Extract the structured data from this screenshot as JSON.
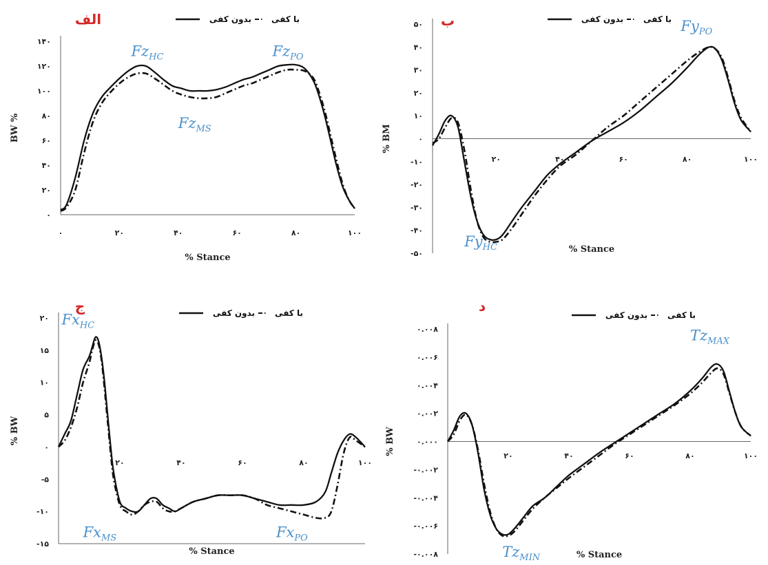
{
  "chart_data": [
    {
      "id": "fz",
      "type": "line",
      "panel_label": "الف",
      "xlabel": "% Stance",
      "ylabel": "BW %",
      "xlim": [
        0,
        100
      ],
      "ylim": [
        0,
        140
      ],
      "xticks": [
        0,
        20,
        40,
        60,
        80,
        100
      ],
      "xtick_labels": [
        "۰",
        "۲۰",
        "۴۰",
        "۶۰",
        "۸۰",
        "۱۰۰"
      ],
      "yticks": [
        0,
        20,
        40,
        60,
        80,
        100,
        120,
        140
      ],
      "ytick_labels": [
        "۰",
        "۲۰",
        "۴۰",
        "۶۰",
        "۸۰",
        "۱۰۰",
        "۱۲۰",
        "۱۴۰"
      ],
      "zero_line": false,
      "legend": "top",
      "series": [
        {
          "name": "با کفی",
          "style": "solid",
          "x": [
            0,
            2,
            5,
            8,
            11,
            14,
            17,
            20,
            23,
            26,
            29,
            32,
            35,
            38,
            41,
            44,
            47,
            50,
            53,
            56,
            59,
            62,
            65,
            68,
            71,
            74,
            77,
            80,
            83,
            86,
            88,
            90,
            92,
            94,
            96,
            98,
            100
          ],
          "y": [
            4,
            8,
            30,
            60,
            82,
            95,
            103,
            110,
            116,
            120,
            120,
            115,
            109,
            104,
            102,
            100,
            100,
            100,
            101,
            103,
            106,
            109,
            111,
            114,
            117,
            120,
            121,
            121,
            118,
            108,
            95,
            78,
            58,
            38,
            22,
            12,
            5
          ]
        },
        {
          "name": "بدون کفی",
          "style": "dash-dot",
          "x": [
            0,
            2,
            5,
            8,
            11,
            14,
            17,
            20,
            23,
            26,
            29,
            32,
            35,
            38,
            41,
            44,
            47,
            50,
            53,
            56,
            59,
            62,
            65,
            68,
            71,
            74,
            77,
            80,
            83,
            86,
            88,
            90,
            92,
            94,
            96,
            98,
            100
          ],
          "y": [
            3,
            6,
            20,
            50,
            75,
            90,
            99,
            106,
            111,
            114,
            114,
            110,
            105,
            100,
            97,
            95,
            94,
            94,
            95,
            98,
            101,
            104,
            106,
            109,
            112,
            115,
            117,
            117,
            116,
            110,
            98,
            82,
            62,
            42,
            24,
            12,
            5
          ]
        }
      ],
      "annotations": [
        {
          "main": "Fz",
          "sub": "HC",
          "x": 24,
          "y": 128
        },
        {
          "main": "Fz",
          "sub": "PO",
          "x": 72,
          "y": 128
        },
        {
          "main": "Fz",
          "sub": "MS",
          "x": 40,
          "y": 70
        }
      ]
    },
    {
      "id": "fy",
      "type": "line",
      "panel_label": "ب",
      "xlabel": "% Stance",
      "ylabel": "% BM",
      "xlim": [
        0,
        100
      ],
      "ylim": [
        -50,
        50
      ],
      "xticks": [
        20,
        40,
        60,
        80,
        100
      ],
      "xtick_labels": [
        "۲۰",
        "۴۰",
        "۶۰",
        "۸۰",
        "۱۰۰"
      ],
      "yticks": [
        -50,
        -40,
        -30,
        -20,
        -10,
        0,
        10,
        20,
        30,
        40,
        50
      ],
      "ytick_labels": [
        "-۵۰",
        "-۴۰",
        "-۳۰",
        "-۲۰",
        "-۱۰",
        "۰",
        "۱۰",
        "۲۰",
        "۳۰",
        "۴۰",
        "۵۰"
      ],
      "zero_line": true,
      "legend": "top",
      "series": [
        {
          "name": "با کفی",
          "style": "solid",
          "x": [
            0,
            2,
            4,
            6,
            8,
            10,
            12,
            14,
            16,
            18,
            20,
            22,
            25,
            28,
            32,
            36,
            40,
            45,
            50,
            55,
            60,
            65,
            70,
            75,
            80,
            84,
            87,
            89,
            91,
            93,
            95,
            97,
            100
          ],
          "y": [
            -3,
            2,
            8,
            10,
            5,
            -10,
            -25,
            -36,
            -42,
            -44,
            -44,
            -42,
            -36,
            -30,
            -23,
            -16,
            -11,
            -6,
            -1,
            3,
            7,
            12,
            18,
            24,
            31,
            37,
            40,
            39,
            34,
            25,
            15,
            8,
            3
          ]
        },
        {
          "name": "بدون کفی",
          "style": "dash-dot",
          "x": [
            0,
            2,
            4,
            6,
            8,
            10,
            12,
            14,
            16,
            18,
            20,
            22,
            25,
            28,
            32,
            36,
            40,
            45,
            50,
            55,
            60,
            65,
            70,
            75,
            80,
            84,
            87,
            89,
            91,
            93,
            95,
            97,
            100
          ],
          "y": [
            -2,
            0,
            5,
            9,
            7,
            -5,
            -22,
            -36,
            -43,
            -45,
            -45,
            -44,
            -39,
            -33,
            -25,
            -18,
            -12,
            -7,
            -1,
            5,
            10,
            16,
            22,
            28,
            34,
            38,
            40,
            39,
            35,
            26,
            16,
            9,
            3
          ]
        }
      ],
      "annotations": [
        {
          "main": "Fy",
          "sub": "PO",
          "x": 78,
          "y": 47
        },
        {
          "main": "Fy",
          "sub": "HC",
          "x": 10,
          "y": -47
        }
      ]
    },
    {
      "id": "fx",
      "type": "line",
      "panel_label": "ج",
      "xlabel": "% Stance",
      "ylabel": "% BW",
      "xlim": [
        0,
        100
      ],
      "ylim": [
        -15,
        20
      ],
      "xticks": [
        20,
        40,
        60,
        80,
        100
      ],
      "xtick_labels": [
        "۲۰",
        "۴۰",
        "۶۰",
        "۸۰",
        "۱۰۰"
      ],
      "yticks": [
        -15,
        -10,
        -5,
        0,
        5,
        10,
        15,
        20
      ],
      "ytick_labels": [
        "-۱۵",
        "-۱۰",
        "-۵",
        "۰",
        "۵",
        "۱۰",
        "۱۵",
        "۲۰"
      ],
      "zero_line": false,
      "legend": "top",
      "series": [
        {
          "name": "با کفی",
          "style": "solid",
          "x": [
            0,
            2,
            4,
            6,
            8,
            10,
            11,
            12,
            13,
            14,
            15,
            16,
            17,
            18,
            20,
            22,
            24,
            26,
            28,
            30,
            32,
            34,
            36,
            38,
            40,
            44,
            48,
            52,
            56,
            60,
            64,
            68,
            72,
            76,
            80,
            84,
            87,
            89,
            91,
            93,
            95,
            97,
            100
          ],
          "y": [
            0,
            2,
            4,
            8,
            12,
            14,
            15.5,
            17,
            16.5,
            14,
            10,
            5,
            0,
            -4,
            -8.5,
            -9.5,
            -10,
            -10,
            -9,
            -8,
            -8,
            -9,
            -9.5,
            -10,
            -9.5,
            -8.5,
            -8,
            -7.5,
            -7.5,
            -7.5,
            -8,
            -8.5,
            -9,
            -9,
            -9,
            -8.5,
            -7,
            -4,
            -1,
            1,
            2,
            1.5,
            0
          ]
        },
        {
          "name": "بدون کفی",
          "style": "dash-dot",
          "x": [
            0,
            2,
            4,
            6,
            8,
            10,
            11,
            12,
            13,
            14,
            15,
            16,
            17,
            18,
            20,
            22,
            24,
            26,
            28,
            30,
            32,
            34,
            36,
            38,
            40,
            44,
            48,
            52,
            56,
            60,
            64,
            68,
            72,
            76,
            80,
            84,
            87,
            89,
            91,
            93,
            95,
            97,
            100
          ],
          "y": [
            0,
            1,
            3,
            6,
            10,
            13,
            15,
            16.5,
            16,
            13.5,
            9,
            4,
            -1,
            -5,
            -9,
            -10,
            -10.5,
            -10,
            -9,
            -8.5,
            -8.5,
            -9.5,
            -10,
            -10,
            -9.5,
            -8.5,
            -8,
            -7.5,
            -7.5,
            -7.5,
            -8,
            -9,
            -9.5,
            -10,
            -10.5,
            -11,
            -11,
            -10,
            -6,
            -1,
            1.5,
            1,
            0
          ]
        }
      ],
      "annotations": [
        {
          "main": "Fx",
          "sub": "HC",
          "x": 1,
          "y": 19
        },
        {
          "main": "Fx",
          "sub": "MS",
          "x": 8,
          "y": -14
        },
        {
          "main": "Fx",
          "sub": "PO",
          "x": 71,
          "y": -14
        }
      ]
    },
    {
      "id": "tz",
      "type": "line",
      "panel_label": "د",
      "xlabel": "% Stance",
      "ylabel": "% BW",
      "xlim": [
        0,
        100
      ],
      "ylim": [
        -0.008,
        0.008
      ],
      "xticks": [
        20,
        40,
        60,
        80,
        100
      ],
      "xtick_labels": [
        "۲۰",
        "۴۰",
        "۶۰",
        "۸۰",
        "۱۰۰"
      ],
      "yticks": [
        -0.008,
        -0.006,
        -0.004,
        -0.002,
        0,
        0.002,
        0.004,
        0.006,
        0.008
      ],
      "ytick_labels": [
        "-۰.۰۰۸",
        "-۰.۰۰۶",
        "-۰.۰۰۴",
        "-۰.۰۰۲",
        "۰.۰۰۰",
        "۰.۰۰۲",
        "۰.۰۰۴",
        "۰.۰۰۶",
        "۰.۰۰۸"
      ],
      "zero_line": true,
      "legend": "top",
      "series": [
        {
          "name": "با کفی",
          "style": "solid",
          "x": [
            0,
            2,
            4,
            6,
            8,
            10,
            12,
            14,
            16,
            18,
            20,
            22,
            25,
            28,
            32,
            36,
            40,
            45,
            50,
            55,
            60,
            65,
            70,
            75,
            80,
            84,
            87,
            89,
            91,
            93,
            95,
            97,
            100
          ],
          "y": [
            0,
            0.0008,
            0.0018,
            0.002,
            0.0012,
            -0.0008,
            -0.0034,
            -0.0052,
            -0.0062,
            -0.0066,
            -0.0066,
            -0.0062,
            -0.0054,
            -0.0046,
            -0.004,
            -0.0032,
            -0.0024,
            -0.0016,
            -0.0008,
            -0.0001,
            0.0006,
            0.0013,
            0.002,
            0.0027,
            0.0036,
            0.0045,
            0.0053,
            0.0055,
            0.005,
            0.0035,
            0.002,
            0.001,
            0.0004
          ]
        },
        {
          "name": "بدون کفی",
          "style": "dash-dot",
          "x": [
            0,
            2,
            4,
            6,
            8,
            10,
            12,
            14,
            16,
            18,
            20,
            22,
            25,
            28,
            32,
            36,
            40,
            45,
            50,
            55,
            60,
            65,
            70,
            75,
            80,
            84,
            87,
            89,
            91,
            93,
            95,
            97,
            100
          ],
          "y": [
            0,
            0.0005,
            0.0015,
            0.0019,
            0.0012,
            -0.0006,
            -0.003,
            -0.005,
            -0.0062,
            -0.0067,
            -0.0067,
            -0.0064,
            -0.0056,
            -0.0048,
            -0.004,
            -0.0033,
            -0.0026,
            -0.0018,
            -0.001,
            -0.0002,
            0.0005,
            0.0012,
            0.0019,
            0.0026,
            0.0034,
            0.0042,
            0.0049,
            0.0052,
            0.0048,
            0.0034,
            0.002,
            0.001,
            0.0004
          ]
        }
      ],
      "annotations": [
        {
          "main": "Tz",
          "sub": "MAX",
          "x": 80,
          "y": 0.0072
        },
        {
          "main": "Tz",
          "sub": "MIN",
          "x": 18,
          "y": -0.0082
        }
      ]
    }
  ]
}
